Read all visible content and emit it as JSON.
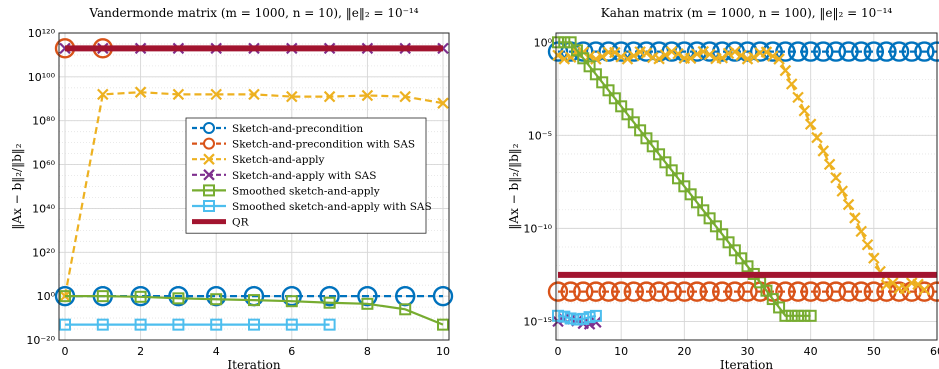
{
  "chart_data": [
    {
      "type": "line",
      "title": "Vandermonde matrix (m = 1000, n = 10), ‖e‖₂ = 10⁻¹⁴",
      "xlabel": "Iteration",
      "ylabel": "‖Ax − b‖₂/‖b‖₂",
      "yscale": "log",
      "xlim": [
        0,
        10
      ],
      "ylim_exp": [
        -20,
        120
      ],
      "xticks": [
        "0",
        "2",
        "4",
        "6",
        "8",
        "10"
      ],
      "yticks": [
        {
          "exp": -20,
          "label": "10⁻²⁰"
        },
        {
          "exp": 0,
          "label": "10⁰"
        },
        {
          "exp": 20,
          "label": "10²⁰"
        },
        {
          "exp": 40,
          "label": "10⁴⁰"
        },
        {
          "exp": 60,
          "label": "10⁶⁰"
        },
        {
          "exp": 80,
          "label": "10⁸⁰"
        },
        {
          "exp": 100,
          "label": "10¹⁰⁰"
        },
        {
          "exp": 120,
          "label": "10¹²⁰"
        }
      ],
      "grid": true,
      "legend_position": "center-right",
      "series": [
        {
          "name": "Sketch-and-precondition",
          "color": "#0072BD",
          "marker": "circle",
          "dash": true,
          "x": [
            0,
            1,
            2,
            3,
            4,
            5,
            6,
            7,
            8,
            9,
            10
          ],
          "y_exp": [
            0,
            0,
            0,
            0,
            0,
            0,
            0,
            0,
            0,
            0,
            0
          ]
        },
        {
          "name": "Sketch-and-precondition with SAS",
          "color": "#D95319",
          "marker": "circle",
          "dash": true,
          "x": [
            0,
            1
          ],
          "y_exp": [
            113,
            113
          ]
        },
        {
          "name": "Sketch-and-apply",
          "color": "#EDB120",
          "marker": "x",
          "dash": true,
          "x": [
            0,
            1,
            2,
            3,
            4,
            5,
            6,
            7,
            8,
            9,
            10
          ],
          "y_exp": [
            0,
            92,
            93,
            92,
            92,
            92,
            91,
            91,
            91.5,
            91,
            88
          ]
        },
        {
          "name": "Sketch-and-apply with SAS",
          "color": "#7E2F8E",
          "marker": "x",
          "dash": true,
          "x": [
            0,
            1,
            2,
            3,
            4,
            5,
            6,
            7,
            8,
            9,
            10
          ],
          "y_exp": [
            113,
            113,
            113,
            113,
            113,
            113,
            113,
            113,
            113,
            113,
            113
          ]
        },
        {
          "name": "Smoothed sketch-and-apply",
          "color": "#77AC30",
          "marker": "square",
          "dash": false,
          "x": [
            0,
            1,
            2,
            3,
            4,
            5,
            6,
            7,
            8,
            9,
            10
          ],
          "y_exp": [
            0,
            0,
            -0.3,
            -1,
            -1.4,
            -1.8,
            -2.3,
            -3,
            -3.5,
            -6,
            -13
          ]
        },
        {
          "name": "Smoothed sketch-and-apply with SAS",
          "color": "#4DBEEE",
          "marker": "square",
          "dash": false,
          "x": [
            0,
            1,
            2,
            3,
            4,
            5,
            6,
            7
          ],
          "y_exp": [
            -13,
            -13,
            -13,
            -13,
            -13,
            -13,
            -13,
            -13
          ]
        },
        {
          "name": "QR",
          "color": "#A2142F",
          "marker": "none",
          "dash": false,
          "x": [
            0,
            10
          ],
          "y_exp": [
            113,
            113
          ]
        }
      ]
    },
    {
      "type": "line",
      "title": "Kahan matrix (m = 1000, n = 100), ‖e‖₂ = 10⁻¹⁴",
      "xlabel": "Iteration",
      "ylabel": "‖Ax − b‖₂/‖b‖₂",
      "yscale": "log",
      "xlim": [
        0,
        60
      ],
      "ylim_exp": [
        -16,
        0.5
      ],
      "xticks": [
        "0",
        "10",
        "20",
        "30",
        "40",
        "50",
        "60"
      ],
      "yticks": [
        {
          "exp": 0,
          "label": "10⁰"
        },
        {
          "exp": -5,
          "label": "10⁻⁵"
        },
        {
          "exp": -10,
          "label": "10⁻¹⁰"
        },
        {
          "exp": -15,
          "label": "10⁻¹⁵"
        }
      ],
      "grid": true,
      "series": [
        {
          "name": "Sketch-and-precondition",
          "color": "#0072BD",
          "marker": "circle",
          "dash": true,
          "kind": "k_spc"
        },
        {
          "name": "Sketch-and-precondition with SAS",
          "color": "#D95319",
          "marker": "circle",
          "dash": true,
          "kind": "k_spcsas"
        },
        {
          "name": "Sketch-and-apply",
          "color": "#EDB120",
          "marker": "x",
          "dash": true,
          "kind": "k_sa"
        },
        {
          "name": "Sketch-and-apply with SAS",
          "color": "#7E2F8E",
          "marker": "x",
          "dash": true,
          "kind": "k_sasas"
        },
        {
          "name": "Smoothed sketch-and-apply",
          "color": "#77AC30",
          "marker": "square",
          "dash": false,
          "kind": "k_ssa"
        },
        {
          "name": "Smoothed sketch-and-apply with SAS",
          "color": "#4DBEEE",
          "marker": "square",
          "dash": false,
          "kind": "k_ssasas"
        },
        {
          "name": "QR",
          "color": "#A2142F",
          "marker": "none",
          "dash": false,
          "kind": "k_qr"
        }
      ]
    }
  ]
}
